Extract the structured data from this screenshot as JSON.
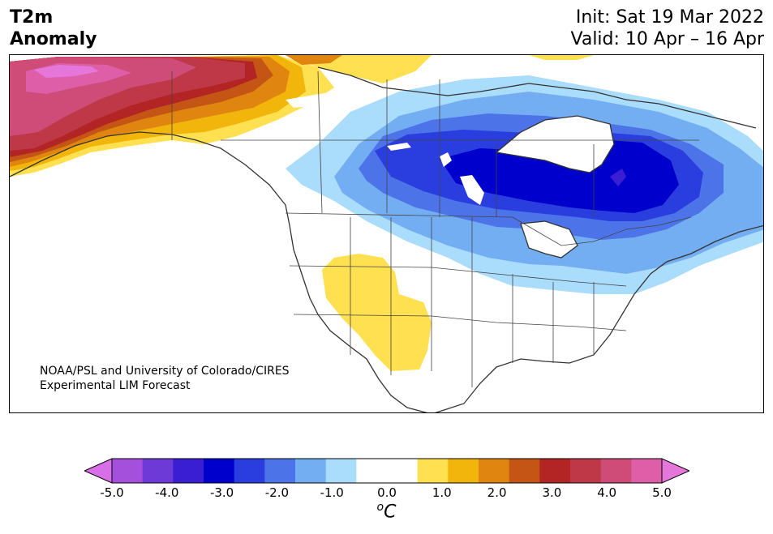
{
  "header": {
    "title_line1": "T2m",
    "title_line2": "Anomaly",
    "init": "Init: Sat 19 Mar 2022",
    "valid": "Valid: 10 Apr – 16 Apr"
  },
  "map": {
    "region": "North America",
    "credit_line1": "NOAA/PSL and University of Colorado/CIRES",
    "credit_line2": "Experimental LIM Forecast"
  },
  "colorbar": {
    "ticks": [
      "-5.0",
      "-4.0",
      "-3.0",
      "-2.0",
      "-1.0",
      "0.0",
      "1.0",
      "2.0",
      "3.0",
      "4.0",
      "5.0"
    ],
    "unit_base": "C",
    "unit_sup": "o",
    "colors": [
      "#d86fe8",
      "#a550dc",
      "#6d3ad8",
      "#3a1fd2",
      "#0000cc",
      "#2a3ee0",
      "#4d73e8",
      "#74aef2",
      "#aadcfc",
      "#ffffff",
      "#ffffff",
      "#ffe050",
      "#f2b50b",
      "#e0850f",
      "#c45514",
      "#b22524",
      "#bf3848",
      "#cf4b78",
      "#de5fa8",
      "#e677da"
    ]
  }
}
